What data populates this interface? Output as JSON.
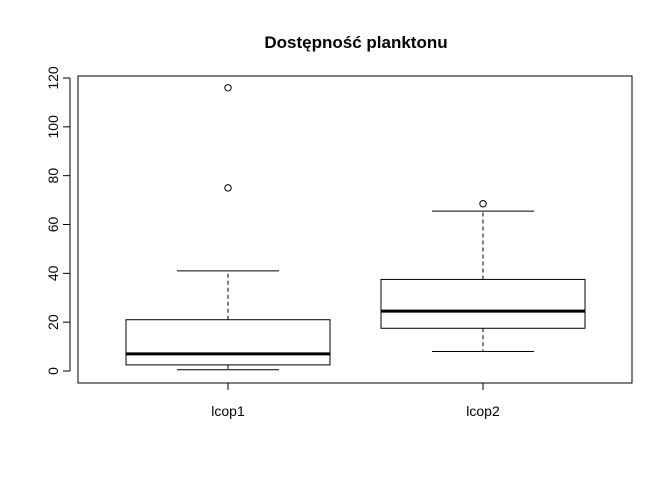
{
  "chart_data": {
    "type": "boxplot",
    "title": "Dostępność planktonu",
    "xlabel": "",
    "ylabel": "",
    "ylim": [
      -5,
      120
    ],
    "yticks": [
      0,
      20,
      40,
      60,
      80,
      100,
      120
    ],
    "ytick_labels": [
      "0",
      "20",
      "40",
      "60",
      "80",
      "100",
      "120"
    ],
    "grid": false,
    "categories": [
      "lcop1",
      "lcop2"
    ],
    "boxes": [
      {
        "name": "lcop1",
        "whisker_low": 0.5,
        "q1": 2.5,
        "median": 7,
        "q3": 21,
        "whisker_high": 41,
        "outliers": [
          75,
          116
        ]
      },
      {
        "name": "lcop2",
        "whisker_low": 8,
        "q1": 17.5,
        "median": 24.5,
        "q3": 37.5,
        "whisker_high": 65.5,
        "outliers": [
          68.5
        ]
      }
    ]
  }
}
